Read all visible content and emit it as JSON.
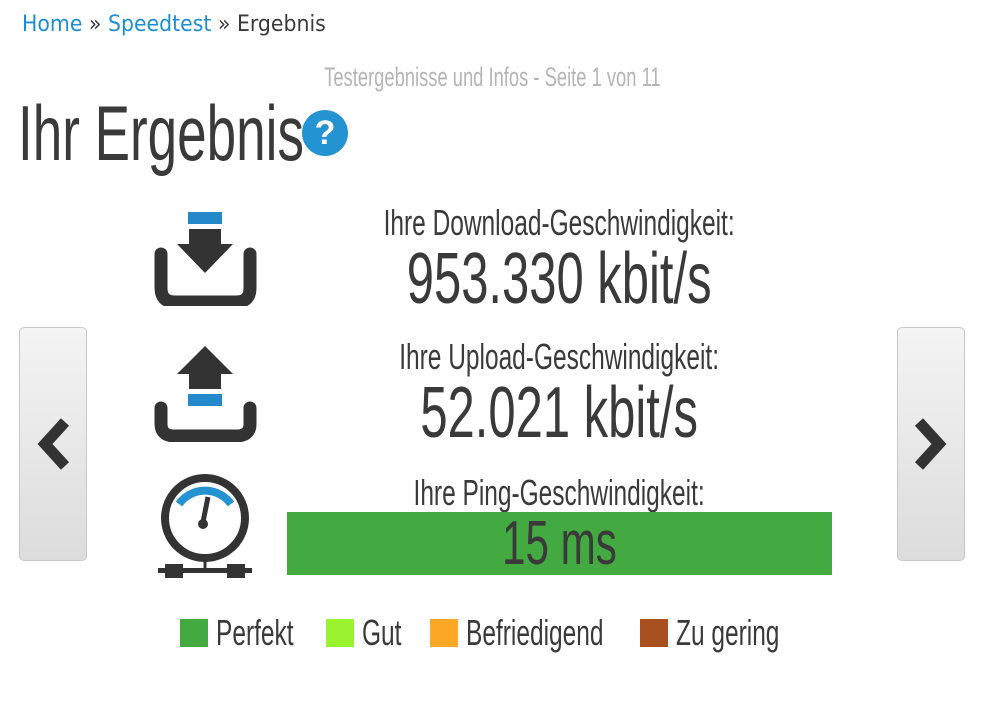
{
  "breadcrumb": {
    "items": [
      "Home",
      "Speedtest",
      "Ergebnis"
    ],
    "separator": "»"
  },
  "subtitle": "Testergebnisse und Infos - Seite 1 von 11",
  "title": "Ihr Ergebnis",
  "help_icon": "?",
  "results": {
    "download": {
      "label": "Ihre Download-Geschwindigkeit:",
      "value": "953.330 kbit/s",
      "icon": "download-icon"
    },
    "upload": {
      "label": "Ihre Upload-Geschwindigkeit:",
      "value": "52.021 kbit/s",
      "icon": "upload-icon"
    },
    "ping": {
      "label": "Ihre Ping-Geschwindigkeit:",
      "value": "15 ms",
      "icon": "gauge-icon",
      "rating_color": "#43aa41"
    }
  },
  "legend": [
    {
      "label": "Perfekt",
      "color": "#43aa41"
    },
    {
      "label": "Gut",
      "color": "#99f32e"
    },
    {
      "label": "Befriedigend",
      "color": "#fda825"
    },
    {
      "label": "Zu gering",
      "color": "#a8501f"
    }
  ],
  "accent": "#2493d1"
}
